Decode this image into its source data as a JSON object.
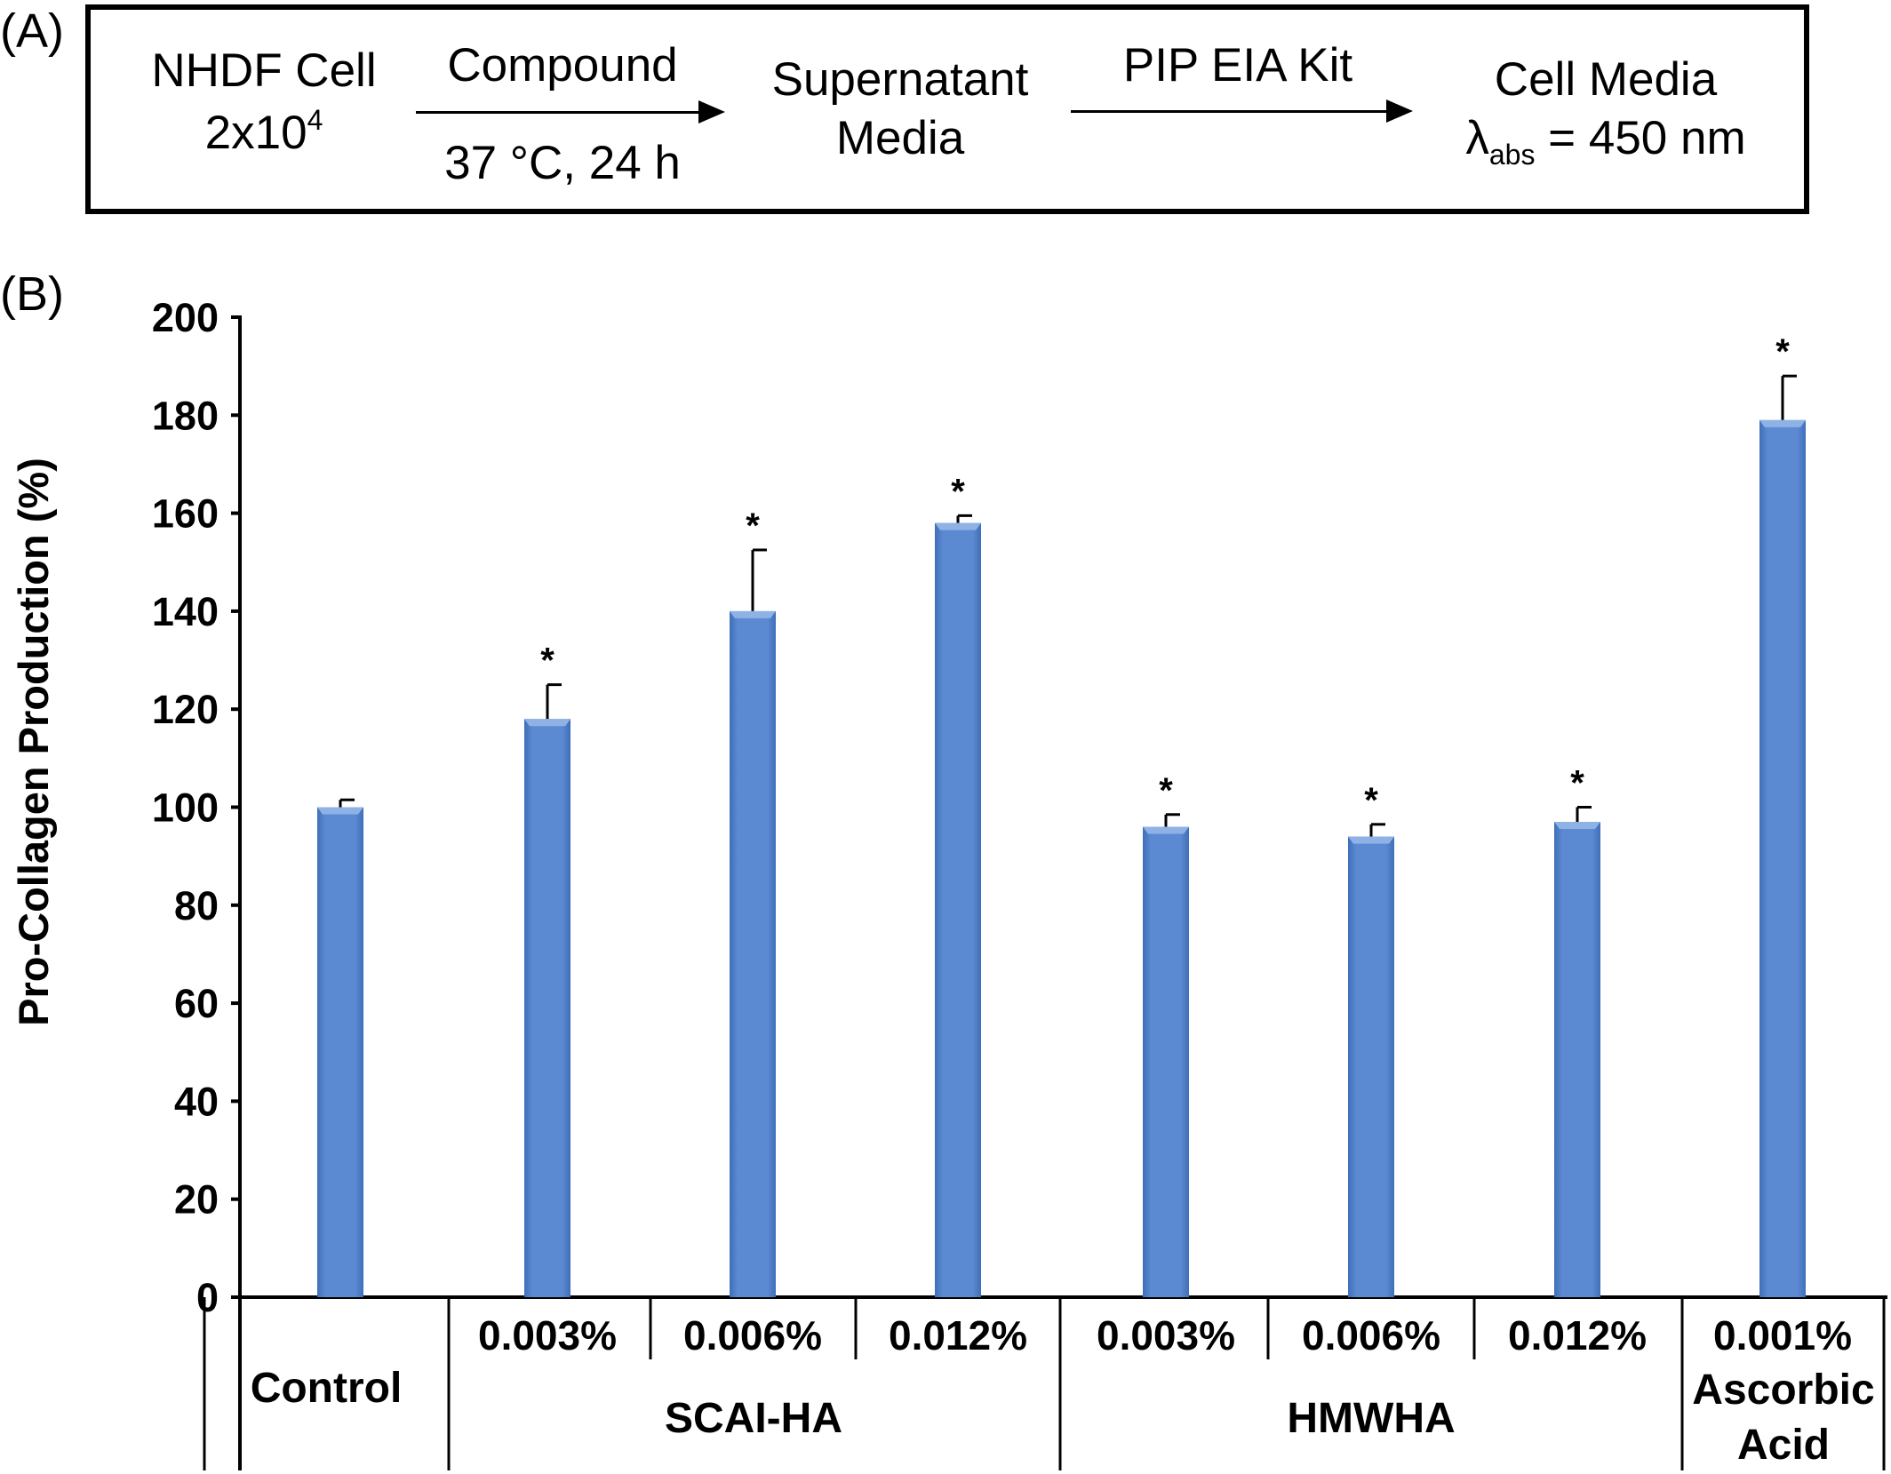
{
  "panel_a": {
    "label": "(A)",
    "step1_line1": "NHDF Cell",
    "step1_line2": "2x10",
    "step1_sup": "4",
    "arrow1_top": "Compound",
    "arrow1_bottom": "37 °C, 24 h",
    "step2_line1": "Supernatant",
    "step2_line2": "Media",
    "arrow2_top": "PIP EIA Kit",
    "step3_line1": "Cell Media",
    "step3_lambda": "λ",
    "step3_sub": "abs",
    "step3_value": " = 450 nm"
  },
  "panel_b": {
    "label": "(B)"
  },
  "chart_data": {
    "type": "bar",
    "ylabel": "Pro-Collagen Production (%)",
    "ylim": [
      0,
      200
    ],
    "yticks": [
      "0",
      "20",
      "40",
      "60",
      "80",
      "100",
      "120",
      "140",
      "160",
      "180",
      "200"
    ],
    "bar_color": "#5b8ad2",
    "categories": [
      "Control",
      "SCAI-HA 0.003%",
      "SCAI-HA 0.006%",
      "SCAI-HA 0.012%",
      "HMWHA 0.003%",
      "HMWHA 0.006%",
      "HMWHA 0.012%",
      "Ascorbic Acid 0.001%"
    ],
    "values": [
      100,
      118,
      140,
      158,
      96,
      94,
      97,
      179
    ],
    "errors": [
      1.5,
      7,
      12.5,
      1.5,
      2.5,
      2.5,
      3,
      9
    ],
    "significance": [
      "",
      "*",
      "*",
      "*",
      "*",
      "*",
      "*",
      "*"
    ],
    "concentration_labels": [
      "",
      "0.003%",
      "0.006%",
      "0.012%",
      "0.003%",
      "0.006%",
      "0.012%",
      "0.001%"
    ],
    "groups": [
      {
        "label": "Control"
      },
      {
        "label": "SCAI-HA"
      },
      {
        "label": "HMWHA"
      },
      {
        "label": "Ascorbic\nAcid"
      }
    ]
  }
}
